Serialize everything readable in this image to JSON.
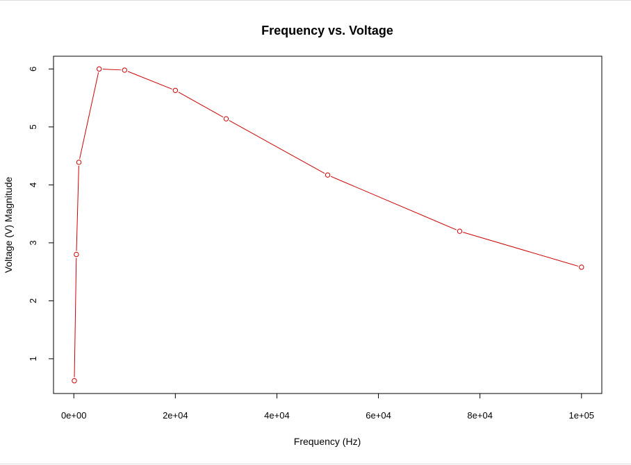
{
  "chart_data": {
    "type": "line",
    "title": "Frequency vs. Voltage",
    "xlabel": "Frequency (Hz)",
    "ylabel": "Voltage (V) Magnitude",
    "xlim": [
      -4000,
      104000
    ],
    "ylim": [
      0.4,
      6.22
    ],
    "x_ticks": [
      0,
      20000,
      40000,
      60000,
      80000,
      100000
    ],
    "x_tick_labels": [
      "0e+00",
      "2e+04",
      "4e+04",
      "6e+04",
      "8e+04",
      "1e+05"
    ],
    "y_ticks": [
      1,
      2,
      3,
      4,
      5,
      6
    ],
    "y_tick_labels": [
      "1",
      "2",
      "3",
      "4",
      "5",
      "6"
    ],
    "grid": false,
    "color": "#cc0000",
    "series": [
      {
        "x": [
          100,
          500,
          1000,
          5000,
          10000,
          20000,
          30000,
          50000,
          76000,
          100000
        ],
        "values": [
          0.62,
          2.8,
          4.39,
          6.0,
          5.98,
          5.63,
          5.14,
          4.17,
          3.2,
          2.58
        ]
      }
    ]
  }
}
